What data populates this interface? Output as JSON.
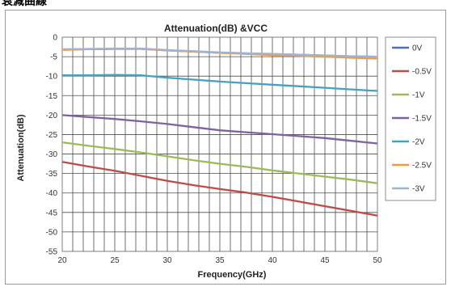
{
  "header": {
    "label": "衰減曲線"
  },
  "chart_data": {
    "type": "line",
    "title": "Attenuation(dB) &VCC",
    "xlabel": "Frequency(GHz)",
    "ylabel": "Attenuation(dB)",
    "xlim": [
      20,
      50
    ],
    "ylim": [
      -55,
      0
    ],
    "xticks": [
      "20",
      "25",
      "30",
      "35",
      "40",
      "45",
      "50"
    ],
    "yticks": [
      "0",
      "-5",
      "-10",
      "-15",
      "-20",
      "-25",
      "-30",
      "-35",
      "-40",
      "-45",
      "-50",
      "-55"
    ],
    "grid": true,
    "legend_position": "right",
    "x": [
      20,
      22.5,
      25,
      27.5,
      30,
      32.5,
      35,
      37.5,
      40,
      42.5,
      45,
      47.5,
      50
    ],
    "series": [
      {
        "name": "0V",
        "color": "#4a72b8",
        "values": [
          -3.2,
          -3.1,
          -3.0,
          -3.0,
          -3.4,
          -3.7,
          -4.0,
          -4.2,
          -4.4,
          -4.5,
          -4.7,
          -4.9,
          -5.0
        ]
      },
      {
        "name": "-0.5V",
        "color": "#bf4b47",
        "values": [
          -32.0,
          -33.2,
          -34.3,
          -35.6,
          -36.9,
          -38.0,
          -39.0,
          -39.9,
          -41.0,
          -42.2,
          -43.4,
          -44.6,
          -45.8
        ]
      },
      {
        "name": "-1V",
        "color": "#9bbb59",
        "values": [
          -27.0,
          -27.9,
          -28.7,
          -29.6,
          -30.6,
          -31.6,
          -32.5,
          -33.3,
          -34.2,
          -35.0,
          -35.8,
          -36.6,
          -37.5
        ]
      },
      {
        "name": "-1.5V",
        "color": "#7e62a1",
        "values": [
          -20.0,
          -20.5,
          -21.0,
          -21.6,
          -22.3,
          -23.1,
          -23.9,
          -24.4,
          -24.9,
          -25.4,
          -25.9,
          -26.6,
          -27.3
        ]
      },
      {
        "name": "-2V",
        "color": "#43a2bf",
        "values": [
          -9.8,
          -9.8,
          -9.7,
          -9.8,
          -10.4,
          -10.9,
          -11.4,
          -11.8,
          -12.2,
          -12.6,
          -13.0,
          -13.4,
          -13.8
        ]
      },
      {
        "name": "-2.5V",
        "color": "#f39a3c",
        "values": [
          -3.3,
          -3.1,
          -3.0,
          -3.0,
          -3.4,
          -3.7,
          -4.0,
          -4.3,
          -4.6,
          -4.8,
          -5.0,
          -5.3,
          -5.5
        ]
      },
      {
        "name": "-3V",
        "color": "#9fb3d3",
        "values": [
          -3.1,
          -3.0,
          -2.9,
          -2.9,
          -3.3,
          -3.6,
          -3.9,
          -4.1,
          -4.3,
          -4.5,
          -4.7,
          -4.9,
          -5.0
        ]
      }
    ]
  }
}
